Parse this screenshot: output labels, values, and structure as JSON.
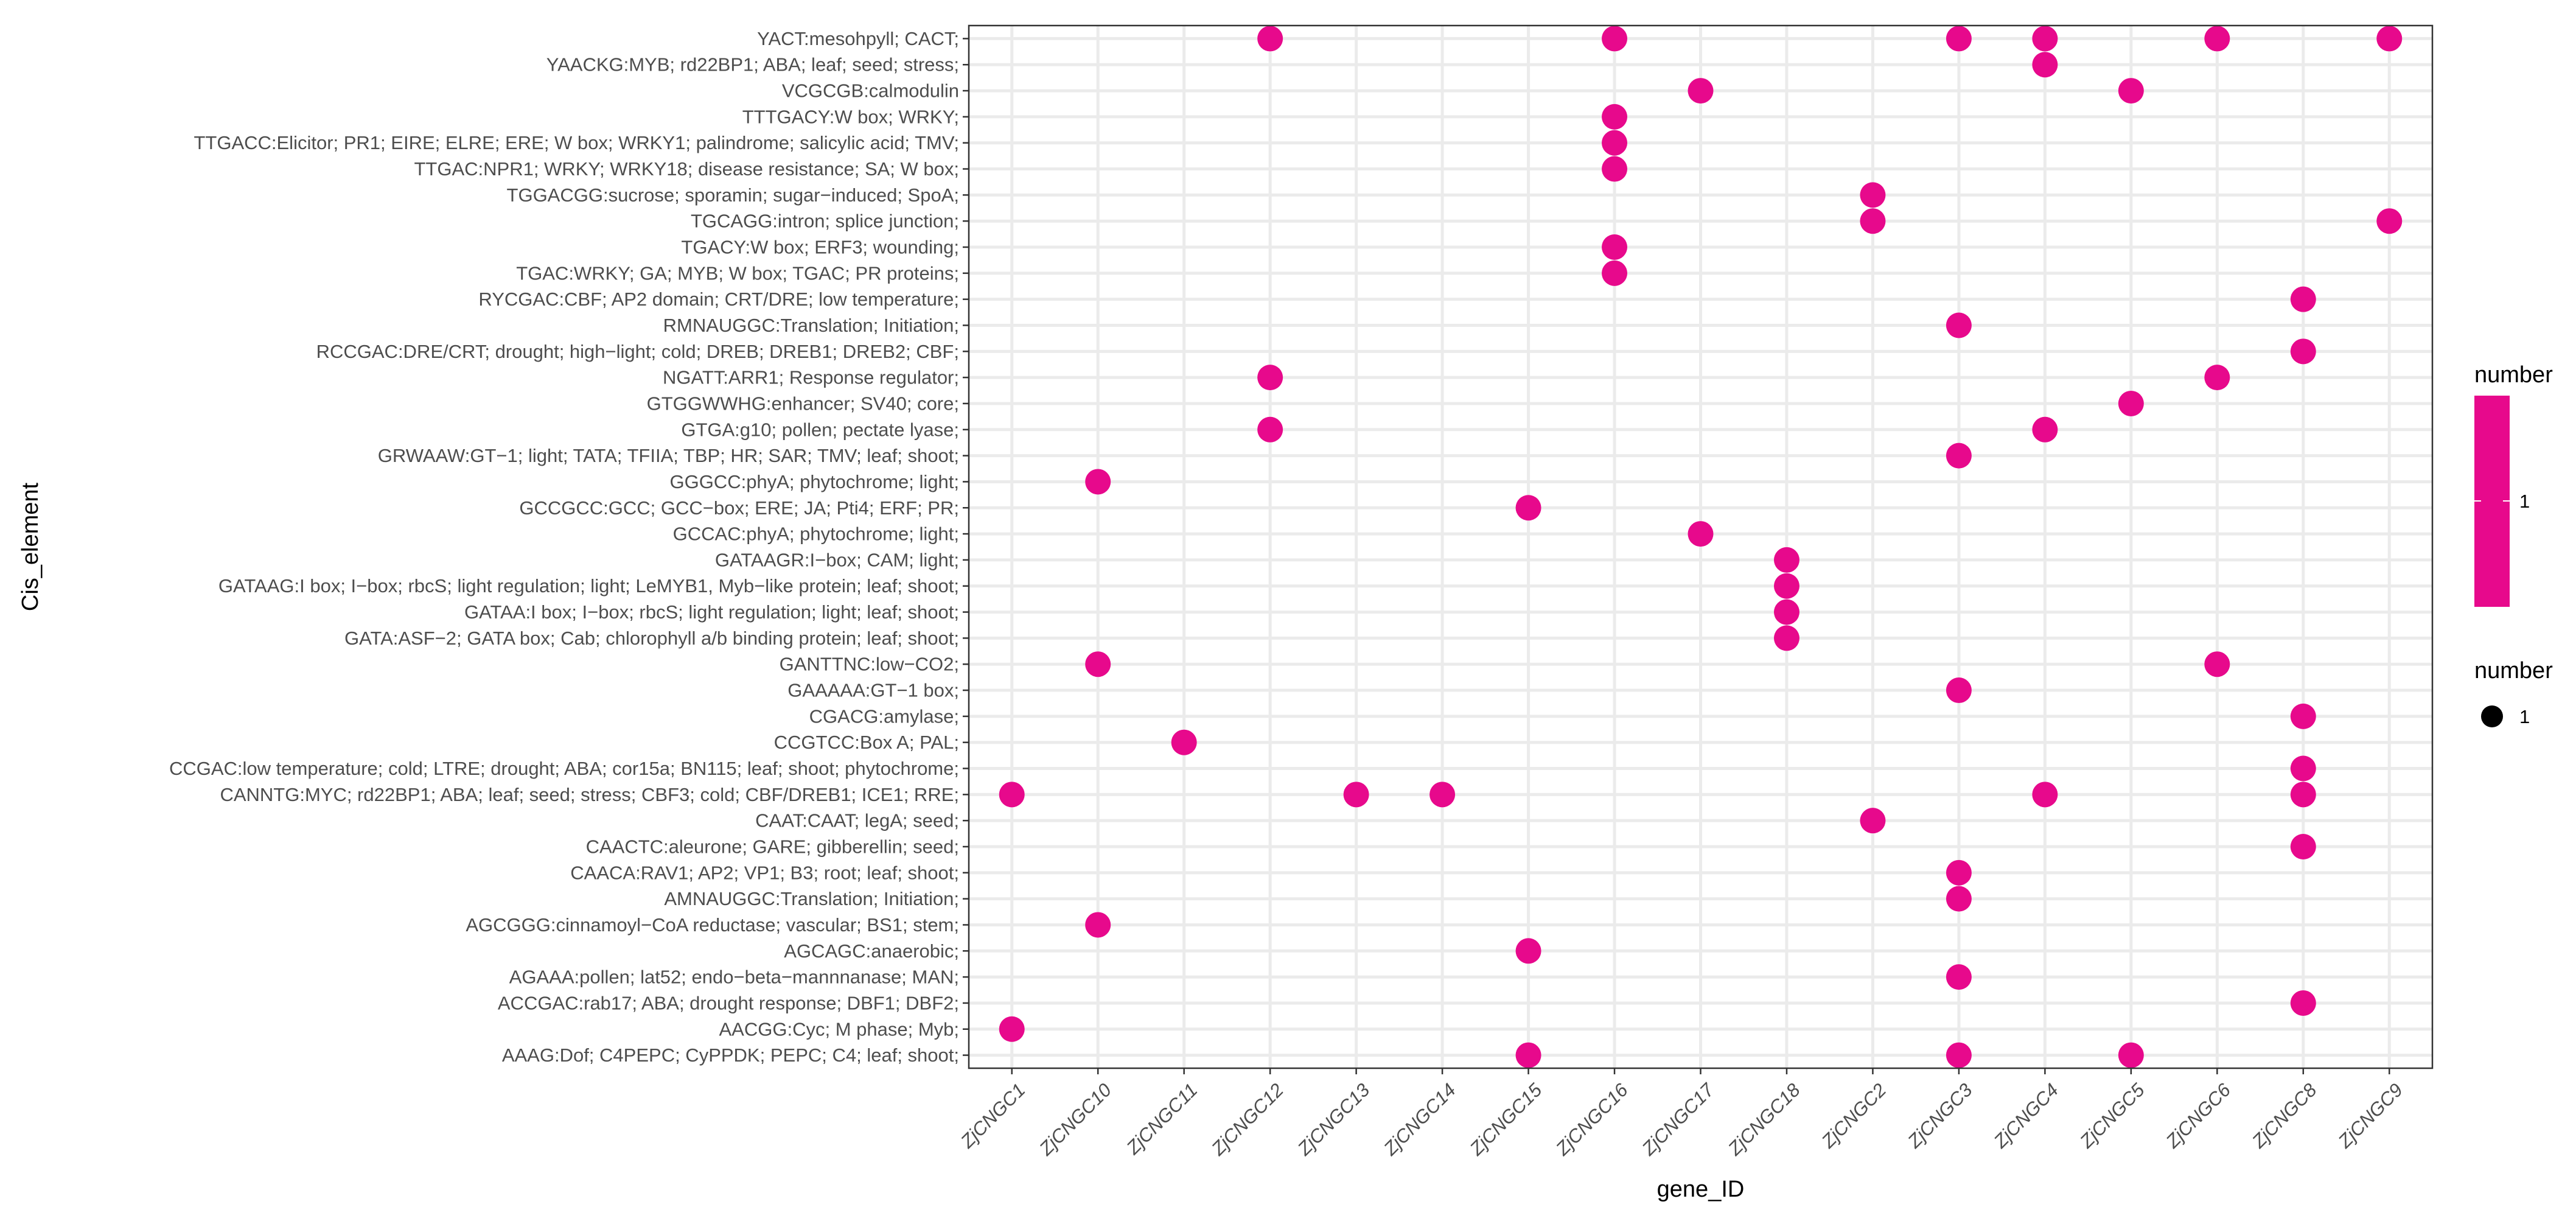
{
  "chart_data": {
    "type": "scatter",
    "xlabel": "gene_ID",
    "ylabel": "Cis_element",
    "x_categories": [
      "ZjCNGC1",
      "ZjCNGC10",
      "ZjCNGC11",
      "ZjCNGC12",
      "ZjCNGC13",
      "ZjCNGC14",
      "ZjCNGC15",
      "ZjCNGC16",
      "ZjCNGC17",
      "ZjCNGC18",
      "ZjCNGC2",
      "ZjCNGC3",
      "ZjCNGC4",
      "ZjCNGC5",
      "ZjCNGC6",
      "ZjCNGC8",
      "ZjCNGC9"
    ],
    "y_categories": [
      "YACT:mesohpyll; CACT;",
      "YAACKG:MYB; rd22BP1; ABA; leaf; seed; stress;",
      "VCGCGB:calmodulin",
      "TTTGACY:W box; WRKY;",
      "TTGACC:Elicitor; PR1; EIRE; ELRE; ERE; W box; WRKY1; palindrome; salicylic acid; TMV;",
      "TTGAC:NPR1; WRKY; WRKY18; disease resistance; SA; W box;",
      "TGGACGG:sucrose; sporamin; sugar−induced; SpoA;",
      "TGCAGG:intron; splice junction;",
      "TGACY:W box; ERF3; wounding;",
      "TGAC:WRKY; GA; MYB; W box; TGAC; PR proteins;",
      "RYCGAC:CBF; AP2 domain; CRT/DRE; low temperature;",
      "RMNAUGGC:Translation; Initiation;",
      "RCCGAC:DRE/CRT; drought; high−light; cold; DREB; DREB1; DREB2; CBF;",
      "NGATT:ARR1; Response regulator;",
      "GTGGWWHG:enhancer; SV40; core;",
      "GTGA:g10; pollen; pectate lyase;",
      "GRWAAW:GT−1; light; TATA; TFIIA; TBP; HR; SAR; TMV; leaf; shoot;",
      "GGGCC:phyA; phytochrome; light;",
      "GCCGCC:GCC; GCC−box; ERE; JA; Pti4; ERF; PR;",
      "GCCAC:phyA; phytochrome; light;",
      "GATAAGR:I−box; CAM; light;",
      "GATAAG:I box; I−box; rbcS; light regulation; light; LeMYB1, Myb−like protein; leaf; shoot;",
      "GATAA:I box; I−box; rbcS; light regulation; light; leaf; shoot;",
      "GATA:ASF−2; GATA box; Cab; chlorophyll a/b binding protein; leaf; shoot;",
      "GANTTNC:low−CO2;",
      "GAAAAA:GT−1 box;",
      "CGACG:amylase;",
      "CCGTCC:Box A; PAL;",
      "CCGAC:low temperature; cold; LTRE; drought; ABA; cor15a; BN115; leaf; shoot; phytochrome;",
      "CANNTG:MYC; rd22BP1; ABA; leaf; seed; stress; CBF3; cold; CBF/DREB1; ICE1; RRE;",
      "CAAT:CAAT; legA; seed;",
      "CAACTC:aleurone; GARE; gibberellin; seed;",
      "CAACA:RAV1; AP2; VP1; B3; root; leaf; shoot;",
      "AMNAUGGC:Translation; Initiation;",
      "AGCGGG:cinnamoyl−CoA reductase; vascular; BS1; stem;",
      "AGCAGC:anaerobic;",
      "AGAAA:pollen; lat52; endo−beta−mannnanase; MAN;",
      "ACCGAC:rab17; ABA; drought response; DBF1; DBF2;",
      "AACGG:Cyc; M phase; Myb;",
      "AAAG:Dof; C4PEPC; CyPPDK; PEPC; C4; leaf; shoot;"
    ],
    "points": [
      {
        "x": "ZjCNGC12",
        "y": 0,
        "number": 1
      },
      {
        "x": "ZjCNGC16",
        "y": 0,
        "number": 1
      },
      {
        "x": "ZjCNGC3",
        "y": 0,
        "number": 1
      },
      {
        "x": "ZjCNGC4",
        "y": 0,
        "number": 1
      },
      {
        "x": "ZjCNGC6",
        "y": 0,
        "number": 1
      },
      {
        "x": "ZjCNGC9",
        "y": 0,
        "number": 1
      },
      {
        "x": "ZjCNGC4",
        "y": 1,
        "number": 1
      },
      {
        "x": "ZjCNGC17",
        "y": 2,
        "number": 1
      },
      {
        "x": "ZjCNGC5",
        "y": 2,
        "number": 1
      },
      {
        "x": "ZjCNGC16",
        "y": 3,
        "number": 1
      },
      {
        "x": "ZjCNGC16",
        "y": 4,
        "number": 1
      },
      {
        "x": "ZjCNGC16",
        "y": 5,
        "number": 1
      },
      {
        "x": "ZjCNGC2",
        "y": 6,
        "number": 1
      },
      {
        "x": "ZjCNGC2",
        "y": 7,
        "number": 1
      },
      {
        "x": "ZjCNGC9",
        "y": 7,
        "number": 1
      },
      {
        "x": "ZjCNGC16",
        "y": 8,
        "number": 1
      },
      {
        "x": "ZjCNGC16",
        "y": 9,
        "number": 1
      },
      {
        "x": "ZjCNGC8",
        "y": 10,
        "number": 1
      },
      {
        "x": "ZjCNGC3",
        "y": 11,
        "number": 1
      },
      {
        "x": "ZjCNGC8",
        "y": 12,
        "number": 1
      },
      {
        "x": "ZjCNGC12",
        "y": 13,
        "number": 1
      },
      {
        "x": "ZjCNGC6",
        "y": 13,
        "number": 1
      },
      {
        "x": "ZjCNGC5",
        "y": 14,
        "number": 1
      },
      {
        "x": "ZjCNGC12",
        "y": 15,
        "number": 1
      },
      {
        "x": "ZjCNGC4",
        "y": 15,
        "number": 1
      },
      {
        "x": "ZjCNGC3",
        "y": 16,
        "number": 1
      },
      {
        "x": "ZjCNGC10",
        "y": 17,
        "number": 1
      },
      {
        "x": "ZjCNGC15",
        "y": 18,
        "number": 1
      },
      {
        "x": "ZjCNGC17",
        "y": 19,
        "number": 1
      },
      {
        "x": "ZjCNGC18",
        "y": 20,
        "number": 1
      },
      {
        "x": "ZjCNGC18",
        "y": 21,
        "number": 1
      },
      {
        "x": "ZjCNGC18",
        "y": 22,
        "number": 1
      },
      {
        "x": "ZjCNGC18",
        "y": 23,
        "number": 1
      },
      {
        "x": "ZjCNGC10",
        "y": 24,
        "number": 1
      },
      {
        "x": "ZjCNGC6",
        "y": 24,
        "number": 1
      },
      {
        "x": "ZjCNGC3",
        "y": 25,
        "number": 1
      },
      {
        "x": "ZjCNGC8",
        "y": 26,
        "number": 1
      },
      {
        "x": "ZjCNGC11",
        "y": 27,
        "number": 1
      },
      {
        "x": "ZjCNGC8",
        "y": 28,
        "number": 1
      },
      {
        "x": "ZjCNGC1",
        "y": 29,
        "number": 1
      },
      {
        "x": "ZjCNGC13",
        "y": 29,
        "number": 1
      },
      {
        "x": "ZjCNGC14",
        "y": 29,
        "number": 1
      },
      {
        "x": "ZjCNGC4",
        "y": 29,
        "number": 1
      },
      {
        "x": "ZjCNGC8",
        "y": 29,
        "number": 1
      },
      {
        "x": "ZjCNGC2",
        "y": 30,
        "number": 1
      },
      {
        "x": "ZjCNGC8",
        "y": 31,
        "number": 1
      },
      {
        "x": "ZjCNGC3",
        "y": 32,
        "number": 1
      },
      {
        "x": "ZjCNGC3",
        "y": 33,
        "number": 1
      },
      {
        "x": "ZjCNGC10",
        "y": 34,
        "number": 1
      },
      {
        "x": "ZjCNGC15",
        "y": 35,
        "number": 1
      },
      {
        "x": "ZjCNGC3",
        "y": 36,
        "number": 1
      },
      {
        "x": "ZjCNGC8",
        "y": 37,
        "number": 1
      },
      {
        "x": "ZjCNGC1",
        "y": 38,
        "number": 1
      },
      {
        "x": "ZjCNGC15",
        "y": 39,
        "number": 1
      },
      {
        "x": "ZjCNGC3",
        "y": 39,
        "number": 1
      },
      {
        "x": "ZjCNGC5",
        "y": 39,
        "number": 1
      }
    ],
    "legend": [
      {
        "title": "number",
        "kind": "color",
        "label": "1"
      },
      {
        "title": "number",
        "kind": "size",
        "label": "1"
      }
    ],
    "point_color": "#E7098C",
    "grid": true
  }
}
